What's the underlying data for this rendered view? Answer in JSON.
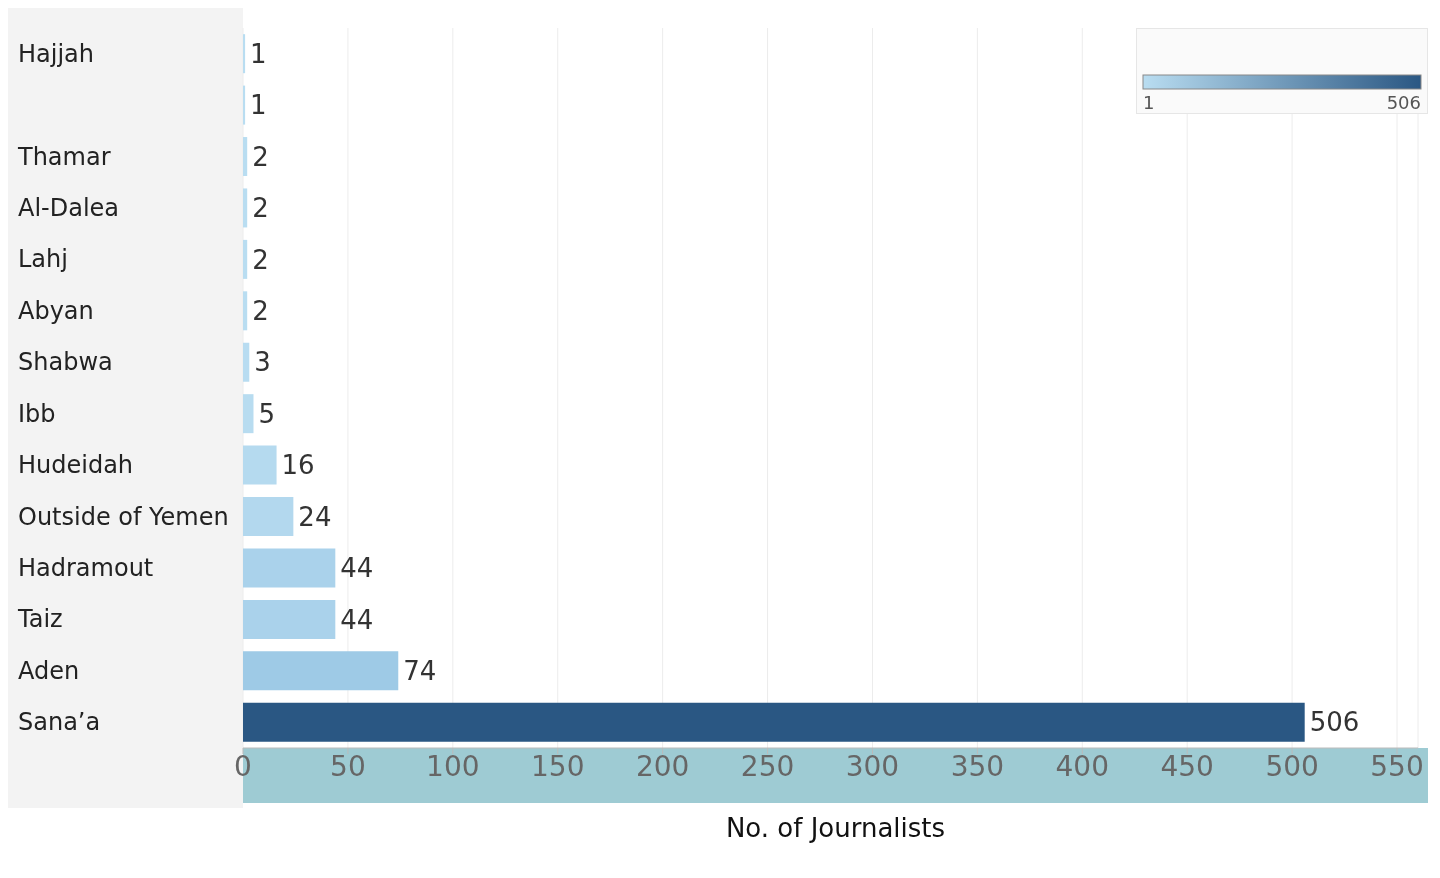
{
  "chart_data": {
    "type": "bar",
    "orientation": "horizontal",
    "xlabel": "No. of Journalists",
    "categories": [
      "Hajjah",
      null,
      "Thamar",
      "Al-Dalea",
      "Lahj",
      "Abyan",
      "Shabwa",
      "Ibb",
      "Hudeidah",
      "Outside of Yemen",
      "Hadramout",
      "Taiz",
      "Aden",
      "Sana’a"
    ],
    "values": [
      1,
      1,
      2,
      2,
      2,
      2,
      3,
      5,
      16,
      24,
      44,
      44,
      74,
      506
    ],
    "colors": [
      "#b9ddf1",
      "#b9ddf1",
      "#b9ddf1",
      "#b9ddf1",
      "#b9ddf1",
      "#b9ddf1",
      "#b8dcf1",
      "#b8dcf0",
      "#b5daef",
      "#b3d8ee",
      "#aad2eb",
      "#aad2eb",
      "#9ecae6",
      "#2a5783"
    ],
    "xlim": [
      0,
      560
    ],
    "xticks": [
      0,
      50,
      100,
      150,
      200,
      250,
      300,
      350,
      400,
      450,
      500,
      550
    ],
    "grid": "x",
    "data_labels": true,
    "annotations": [
      "1",
      "506"
    ]
  }
}
